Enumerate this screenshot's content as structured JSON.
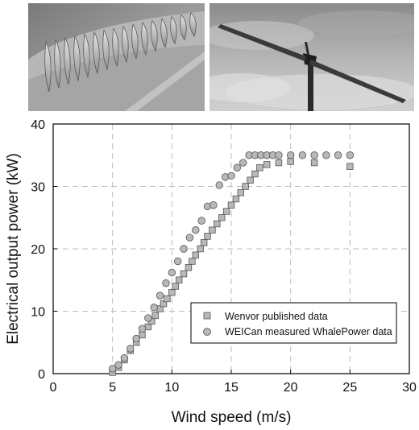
{
  "colors": {
    "marker_fill": "#b8b8b8",
    "marker_stroke": "#555555",
    "grid": "#bdbdbd",
    "axis": "#000000"
  },
  "photos": [
    {
      "icon": "tubercle-blade-photo"
    },
    {
      "icon": "wind-turbine-photo"
    }
  ],
  "chart_data": {
    "type": "scatter",
    "xlabel": "Wind speed (m/s)",
    "ylabel": "Electrical output power (kW)",
    "xlim": [
      0,
      30
    ],
    "ylim": [
      0,
      40
    ],
    "xticks": [
      0,
      5,
      10,
      15,
      20,
      25,
      30
    ],
    "yticks": [
      0,
      10,
      20,
      30,
      40
    ],
    "grid": "dashed",
    "legend_position": "lower-right",
    "series": [
      {
        "name": "Wenvor published data",
        "marker": "square",
        "x": [
          5.0,
          5.5,
          6.0,
          6.5,
          7.0,
          7.5,
          8.0,
          8.3,
          8.6,
          9.0,
          9.3,
          9.6,
          10.0,
          10.3,
          10.6,
          11.0,
          11.4,
          11.7,
          12.0,
          12.4,
          12.7,
          13.0,
          13.4,
          13.8,
          14.2,
          14.6,
          15.0,
          15.4,
          15.8,
          16.2,
          16.6,
          17.0,
          17.4,
          18.0,
          19.0,
          20.0,
          22.0,
          25.0
        ],
        "y": [
          0.2,
          1.0,
          2.2,
          3.7,
          5.0,
          6.2,
          7.5,
          8.4,
          9.3,
          10.4,
          11.2,
          12.0,
          13.0,
          14.0,
          15.0,
          16.0,
          17.0,
          18.0,
          19.0,
          20.0,
          21.0,
          22.0,
          23.0,
          24.0,
          25.0,
          26.0,
          27.0,
          28.0,
          29.0,
          30.0,
          31.0,
          32.0,
          33.0,
          33.5,
          33.8,
          34.0,
          33.8,
          33.2
        ]
      },
      {
        "name": "WEICan measured WhalePower data",
        "marker": "circle",
        "x": [
          5.0,
          5.5,
          6.0,
          6.5,
          7.0,
          7.5,
          8.0,
          8.5,
          9.0,
          9.5,
          10.0,
          10.5,
          11.0,
          11.5,
          12.0,
          12.5,
          13.0,
          13.5,
          14.0,
          14.5,
          15.0,
          15.5,
          16.0,
          16.5,
          17.0,
          17.5,
          18.0,
          18.5,
          19.0,
          20.0,
          21.0,
          22.0,
          23.0,
          24.0,
          25.0
        ],
        "y": [
          0.8,
          1.4,
          2.5,
          4.0,
          5.6,
          7.2,
          8.9,
          10.6,
          12.5,
          14.5,
          16.2,
          18.0,
          20.0,
          21.8,
          23.0,
          24.5,
          26.8,
          27.0,
          30.2,
          31.5,
          31.7,
          33.0,
          33.8,
          35.0,
          35.0,
          35.0,
          35.0,
          35.0,
          35.0,
          35.0,
          35.0,
          35.0,
          35.0,
          35.0,
          35.0
        ]
      }
    ]
  }
}
